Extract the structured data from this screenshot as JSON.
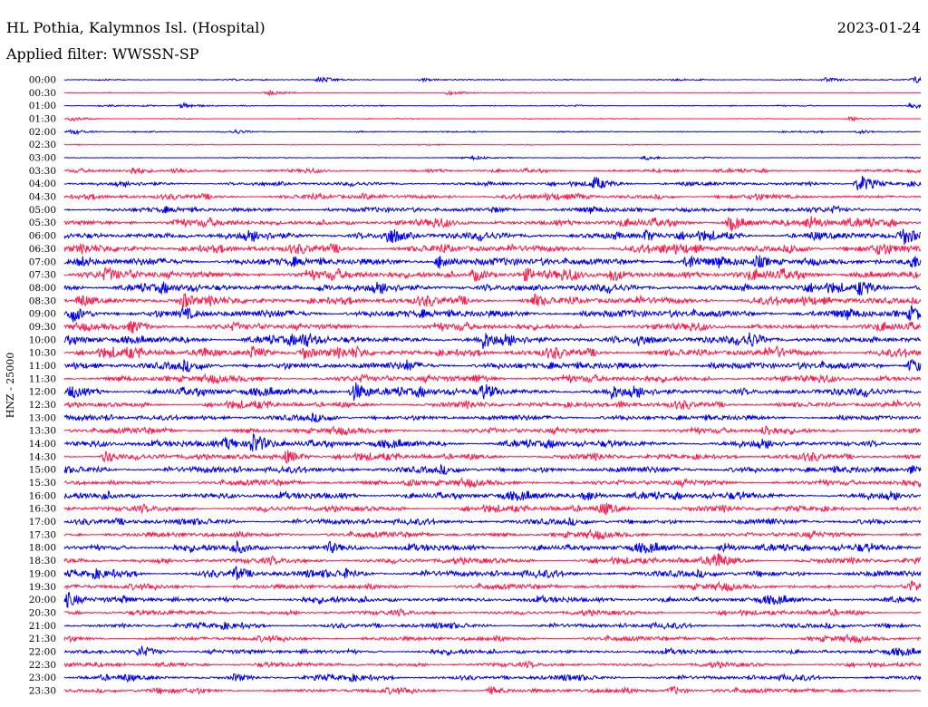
{
  "header": {
    "station": "HL Pothia, Kalymnos Isl. (Hospital)",
    "date": "2023-01-24",
    "filter": "Applied filter: WWSSN-SP"
  },
  "chart_data": {
    "type": "line",
    "title": "HL Pothia, Kalymnos Isl. (Hospital)",
    "subtitle": "Applied filter: WWSSN-SP",
    "ylabel": "HNZ - 25000",
    "colors": {
      "even_trace": "#0000ee",
      "odd_trace": "#ff1a4b"
    },
    "rows": [
      {
        "label": "00:00",
        "noise": 0.6,
        "events": [
          [
            0.3,
            3.5
          ],
          [
            0.42,
            2.0
          ],
          [
            0.89,
            2.5
          ],
          [
            0.995,
            4.0
          ]
        ]
      },
      {
        "label": "00:30",
        "noise": 0.4,
        "events": [
          [
            0.24,
            3.0
          ],
          [
            0.45,
            2.5
          ]
        ]
      },
      {
        "label": "01:00",
        "noise": 0.6,
        "events": [
          [
            0.14,
            3.0
          ],
          [
            0.99,
            3.5
          ]
        ]
      },
      {
        "label": "01:30",
        "noise": 0.4,
        "events": [
          [
            0.01,
            2.5
          ],
          [
            0.92,
            2.5
          ]
        ]
      },
      {
        "label": "02:00",
        "noise": 0.6,
        "events": [
          [
            0.01,
            3.0
          ],
          [
            0.2,
            2.5
          ],
          [
            0.93,
            2.0
          ]
        ]
      },
      {
        "label": "02:30",
        "noise": 0.4,
        "events": []
      },
      {
        "label": "03:00",
        "noise": 0.6,
        "events": [
          [
            0.48,
            2.5
          ],
          [
            0.68,
            2.5
          ]
        ]
      },
      {
        "label": "03:30",
        "noise": 1.6,
        "events": [
          [
            0.08,
            5.0
          ],
          [
            0.13,
            4.0
          ],
          [
            0.99,
            3.0
          ]
        ]
      },
      {
        "label": "04:00",
        "noise": 2.0,
        "events": [
          [
            0.62,
            8.0
          ],
          [
            0.93,
            10.0
          ]
        ]
      },
      {
        "label": "04:30",
        "noise": 2.5,
        "events": [
          [
            0.35,
            4.0
          ],
          [
            0.6,
            4.0
          ]
        ]
      },
      {
        "label": "05:00",
        "noise": 2.8,
        "events": [
          [
            0.5,
            4.0
          ]
        ]
      },
      {
        "label": "05:30",
        "noise": 3.5,
        "events": [
          [
            0.78,
            9.0
          ],
          [
            0.87,
            9.0
          ],
          [
            0.13,
            5.0
          ]
        ]
      },
      {
        "label": "06:00",
        "noise": 4.0,
        "events": [
          [
            0.38,
            11.0
          ],
          [
            0.98,
            11.0
          ],
          [
            0.68,
            7.0
          ]
        ]
      },
      {
        "label": "06:30",
        "noise": 4.0,
        "events": [
          [
            0.7,
            6.0
          ],
          [
            0.85,
            6.0
          ],
          [
            0.95,
            7.0
          ]
        ]
      },
      {
        "label": "07:00",
        "noise": 4.5,
        "events": [
          [
            0.02,
            7.0
          ],
          [
            0.44,
            9.0
          ],
          [
            0.73,
            9.0
          ],
          [
            0.81,
            8.0
          ],
          [
            0.99,
            9.0
          ]
        ]
      },
      {
        "label": "07:30",
        "noise": 4.5,
        "events": [
          [
            0.05,
            9.0
          ],
          [
            0.48,
            8.0
          ],
          [
            0.54,
            8.0
          ],
          [
            0.64,
            8.0
          ]
        ]
      },
      {
        "label": "08:00",
        "noise": 4.0,
        "events": [
          [
            0.93,
            10.0
          ],
          [
            0.3,
            5.0
          ]
        ]
      },
      {
        "label": "08:30",
        "noise": 4.0,
        "events": [
          [
            0.02,
            8.0
          ],
          [
            0.14,
            9.0
          ],
          [
            0.55,
            8.0
          ]
        ]
      },
      {
        "label": "09:00",
        "noise": 4.5,
        "events": [
          [
            0.01,
            10.0
          ],
          [
            0.14,
            8.0
          ],
          [
            0.99,
            10.0
          ]
        ]
      },
      {
        "label": "09:30",
        "noise": 3.5,
        "events": [
          [
            0.08,
            8.0
          ]
        ]
      },
      {
        "label": "10:00",
        "noise": 4.0,
        "events": [
          [
            0.28,
            10.0
          ],
          [
            0.49,
            11.0
          ],
          [
            0.67,
            9.0
          ],
          [
            0.8,
            10.0
          ]
        ]
      },
      {
        "label": "10:30",
        "noise": 4.0,
        "events": [
          [
            0.22,
            8.0
          ],
          [
            0.28,
            8.0
          ],
          [
            0.34,
            8.0
          ],
          [
            0.16,
            7.0
          ],
          [
            0.83,
            8.0
          ]
        ]
      },
      {
        "label": "11:00",
        "noise": 4.0,
        "events": [
          [
            0.4,
            7.0
          ],
          [
            0.99,
            8.0
          ]
        ]
      },
      {
        "label": "11:30",
        "noise": 3.5,
        "events": [
          [
            0.48,
            6.0
          ]
        ]
      },
      {
        "label": "12:00",
        "noise": 4.0,
        "events": [
          [
            0.01,
            8.0
          ],
          [
            0.34,
            11.0
          ],
          [
            0.49,
            10.0
          ],
          [
            0.64,
            9.0
          ]
        ]
      },
      {
        "label": "12:30",
        "noise": 3.0,
        "events": [
          [
            0.65,
            5.0
          ]
        ]
      },
      {
        "label": "13:00",
        "noise": 3.0,
        "events": [
          [
            0.3,
            5.0
          ]
        ]
      },
      {
        "label": "13:30",
        "noise": 3.0,
        "events": [
          [
            0.82,
            7.0
          ]
        ]
      },
      {
        "label": "14:00",
        "noise": 3.5,
        "events": [
          [
            0.19,
            8.0
          ],
          [
            0.22,
            13.0
          ],
          [
            0.57,
            5.0
          ]
        ]
      },
      {
        "label": "14:30",
        "noise": 3.0,
        "events": [
          [
            0.05,
            7.0
          ],
          [
            0.26,
            8.0
          ]
        ]
      },
      {
        "label": "15:00",
        "noise": 3.5,
        "events": [
          [
            0.99,
            6.0
          ]
        ]
      },
      {
        "label": "15:30",
        "noise": 3.0,
        "events": [
          [
            0.4,
            5.0
          ]
        ]
      },
      {
        "label": "16:00",
        "noise": 3.5,
        "events": [
          [
            0.61,
            7.0
          ]
        ]
      },
      {
        "label": "16:30",
        "noise": 3.0,
        "events": [
          [
            0.63,
            8.0
          ]
        ]
      },
      {
        "label": "17:00",
        "noise": 3.0,
        "events": [
          [
            0.82,
            6.0
          ]
        ]
      },
      {
        "label": "17:30",
        "noise": 3.0,
        "events": [
          [
            0.2,
            5.0
          ]
        ]
      },
      {
        "label": "18:00",
        "noise": 3.5,
        "events": [
          [
            0.2,
            8.0
          ],
          [
            0.31,
            7.0
          ],
          [
            0.77,
            6.0
          ]
        ]
      },
      {
        "label": "18:30",
        "noise": 3.0,
        "events": [
          [
            0.76,
            11.0
          ]
        ]
      },
      {
        "label": "19:00",
        "noise": 3.5,
        "events": [
          [
            0.2,
            9.0
          ],
          [
            0.33,
            6.0
          ]
        ]
      },
      {
        "label": "19:30",
        "noise": 2.8,
        "events": [
          [
            0.99,
            7.0
          ]
        ]
      },
      {
        "label": "20:00",
        "noise": 3.0,
        "events": [
          [
            0.0,
            11.0
          ],
          [
            0.07,
            5.0
          ]
        ]
      },
      {
        "label": "20:30",
        "noise": 2.5,
        "events": []
      },
      {
        "label": "21:00",
        "noise": 2.5,
        "events": []
      },
      {
        "label": "21:30",
        "noise": 2.5,
        "events": []
      },
      {
        "label": "22:00",
        "noise": 2.5,
        "events": [
          [
            0.09,
            7.0
          ]
        ]
      },
      {
        "label": "22:30",
        "noise": 2.3,
        "events": []
      },
      {
        "label": "23:00",
        "noise": 2.5,
        "events": [
          [
            0.2,
            5.0
          ]
        ]
      },
      {
        "label": "23:30",
        "noise": 2.5,
        "events": [
          [
            0.5,
            5.0
          ],
          [
            0.71,
            5.0
          ]
        ]
      }
    ]
  }
}
